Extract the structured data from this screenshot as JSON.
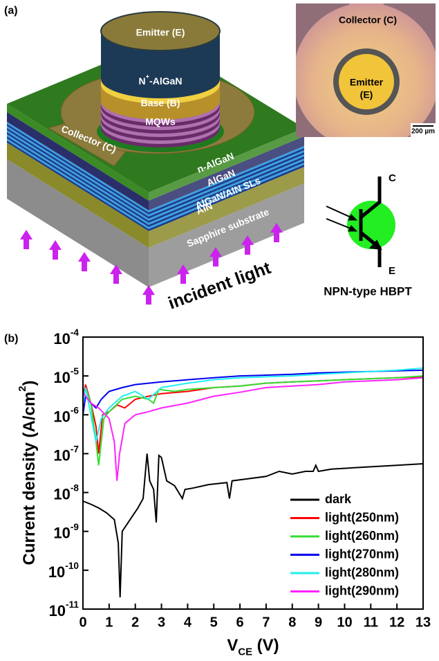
{
  "panel_a": {
    "label": "(a)",
    "device": {
      "emitter": "Emitter (E)",
      "n_plus": "N+-AlGaN",
      "base": "Base (B)",
      "mqws": "MQWs",
      "collector": "Collector (C)",
      "layers": [
        "n-AlGaN",
        "AlGaN",
        "AlGaN/AlN SLs",
        "AlN",
        "Sapphire substrate"
      ],
      "incident": "incident light"
    },
    "micrograph": {
      "collector": "Collector (C)",
      "emitter": [
        "Emitter",
        "(E)"
      ],
      "scale": "200 µm"
    },
    "symbol": {
      "c": "C",
      "e": "E",
      "caption": "NPN-type HBPT"
    }
  },
  "panel_b": {
    "label": "(b)"
  },
  "chart_data": {
    "type": "line",
    "x_label": "VCE (V)",
    "y_label": "Current density (A/cm2)",
    "log_y": true,
    "xlim": [
      0,
      13
    ],
    "xticks": [
      0,
      1,
      2,
      3,
      4,
      5,
      6,
      7,
      8,
      9,
      10,
      11,
      12,
      13
    ],
    "ylim": [
      1e-11,
      0.0001
    ],
    "yticks": [
      {
        "value": 1e-11,
        "label": "10-11"
      },
      {
        "value": 1e-10,
        "label": "10-10"
      },
      {
        "value": 1e-09,
        "label": "10-9"
      },
      {
        "value": 1e-08,
        "label": "10-8"
      },
      {
        "value": 1e-07,
        "label": "10-7"
      },
      {
        "value": 1e-06,
        "label": "10-6"
      },
      {
        "value": 1e-05,
        "label": "10-5"
      },
      {
        "value": 0.0001,
        "label": "10-4"
      }
    ],
    "legend": "lower right",
    "series": [
      {
        "name": "dark",
        "color": "#000000",
        "x": [
          0,
          0.3,
          0.6,
          0.9,
          1.2,
          1.35,
          1.42,
          1.5,
          1.8,
          2.1,
          2.3,
          2.45,
          2.55,
          2.7,
          2.8,
          2.9,
          3.0,
          3.2,
          3.5,
          3.8,
          3.9,
          4.2,
          4.8,
          5.5,
          5.6,
          5.7,
          6.2,
          7,
          7.5,
          8,
          8.5,
          8.8,
          8.9,
          9,
          9.5,
          10,
          11,
          12,
          13
        ],
        "values": [
          6e-09,
          5e-09,
          4e-09,
          3e-09,
          2e-09,
          5e-10,
          2e-11,
          1e-09,
          2e-09,
          4e-09,
          7e-09,
          1e-07,
          2e-08,
          1.2e-08,
          1.7e-09,
          9e-08,
          8e-08,
          2e-08,
          1.5e-08,
          7e-09,
          1.2e-08,
          1.3e-08,
          1.6e-08,
          1.8e-08,
          7e-09,
          2e-08,
          2.2e-08,
          2.6e-08,
          3.5e-08,
          3e-08,
          3.5e-08,
          3.5e-08,
          5e-08,
          3.5e-08,
          4e-08,
          4.2e-08,
          4.6e-08,
          5e-08,
          5.5e-08
        ]
      },
      {
        "name": "light(250nm)",
        "color": "#ff0000",
        "x": [
          0,
          0.1,
          0.3,
          0.5,
          0.6,
          0.75,
          1,
          1.3,
          1.6,
          2,
          2.5,
          3,
          4,
          5,
          6,
          7,
          8,
          9,
          10,
          11,
          12,
          13
        ],
        "values": [
          3e-06,
          6e-06,
          2e-06,
          5e-07,
          1e-07,
          1e-06,
          1.2e-06,
          1.8e-06,
          1.5e-06,
          2.5e-06,
          3e-06,
          3.5e-06,
          4e-06,
          5e-06,
          5.5e-06,
          6.5e-06,
          7e-06,
          7.5e-06,
          8e-06,
          8.5e-06,
          9e-06,
          9.5e-06
        ]
      },
      {
        "name": "light(260nm)",
        "color": "#33dd33",
        "x": [
          0,
          0.1,
          0.3,
          0.5,
          0.6,
          0.8,
          1,
          1.5,
          2,
          2.5,
          2.7,
          2.9,
          3.5,
          4,
          5,
          6,
          7,
          8,
          9,
          10,
          11,
          12,
          13
        ],
        "values": [
          2e-06,
          5e-06,
          2e-06,
          2e-07,
          5e-08,
          8e-07,
          1.2e-06,
          2.5e-06,
          3e-06,
          2.5e-06,
          2e-06,
          4.5e-06,
          4e-06,
          4.5e-06,
          5e-06,
          5.5e-06,
          6.5e-06,
          7e-06,
          7.5e-06,
          8e-06,
          8.5e-06,
          9e-06,
          1e-05
        ]
      },
      {
        "name": "light(270nm)",
        "color": "#0000ee",
        "x": [
          0,
          0.1,
          0.3,
          0.5,
          0.7,
          1,
          1.5,
          2,
          3,
          4,
          5,
          6,
          7,
          8,
          9,
          10,
          11,
          12,
          13
        ],
        "values": [
          1e-06,
          3e-06,
          2e-06,
          1.5e-06,
          2.5e-06,
          4e-06,
          5e-06,
          6e-06,
          7e-06,
          8e-06,
          9e-06,
          1e-05,
          1.05e-05,
          1.1e-05,
          1.2e-05,
          1.25e-05,
          1.3e-05,
          1.35e-05,
          1.4e-05
        ]
      },
      {
        "name": "light(280nm)",
        "color": "#22eeee",
        "x": [
          0,
          0.1,
          0.3,
          0.5,
          0.7,
          1,
          1.5,
          2,
          2.5,
          3,
          4,
          5,
          6,
          7,
          8,
          9,
          10,
          11,
          12,
          13
        ],
        "values": [
          2e-06,
          5e-06,
          1e-06,
          2e-07,
          8e-07,
          1.5e-06,
          3e-06,
          4e-06,
          2.5e-06,
          5e-06,
          6.5e-06,
          8e-06,
          9e-06,
          9.5e-06,
          1e-05,
          1.1e-05,
          1.2e-05,
          1.3e-05,
          1.4e-05,
          1.6e-05
        ]
      },
      {
        "name": "light(290nm)",
        "color": "#ff22ff",
        "x": [
          0,
          0.1,
          0.3,
          0.6,
          1,
          1.2,
          1.3,
          1.4,
          1.6,
          2,
          2.5,
          3,
          4,
          5,
          6,
          7,
          8,
          9,
          10,
          11,
          12,
          13
        ],
        "values": [
          4e-06,
          3e-06,
          2e-06,
          1.5e-06,
          8e-07,
          2e-07,
          2e-08,
          1e-07,
          6e-07,
          1e-06,
          1.2e-06,
          1.5e-06,
          2e-06,
          3e-06,
          3.8e-06,
          5e-06,
          5.5e-06,
          6e-06,
          7e-06,
          7.5e-06,
          8e-06,
          9e-06
        ]
      }
    ]
  }
}
